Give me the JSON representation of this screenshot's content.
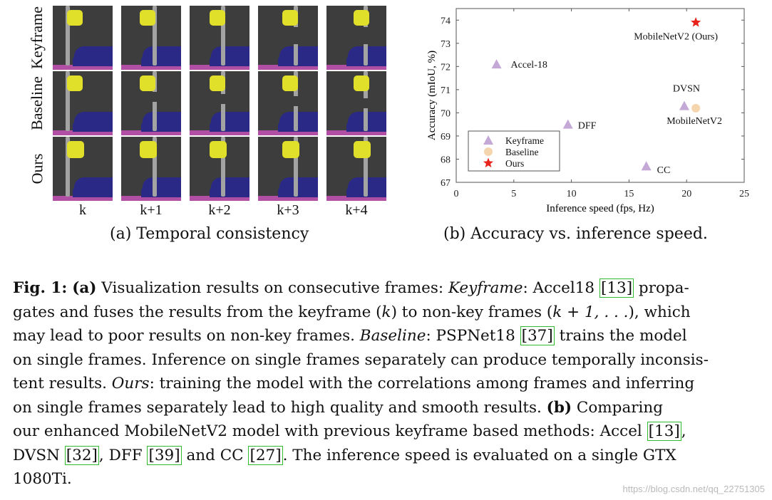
{
  "panel_a": {
    "row_labels": [
      "Keyframe",
      "Baseline",
      "Ours"
    ],
    "col_labels": [
      "k",
      "k+1",
      "k+2",
      "k+3",
      "k+4"
    ],
    "caption": "(a) Temporal consistency",
    "colors": {
      "background": "#3d3d3d",
      "sign": "#e0e02a",
      "pole": "#a3a3a3",
      "car": "#2a2a86",
      "road": "#b04fa3"
    }
  },
  "panel_b": {
    "caption": "(b) Accuracy vs. inference speed."
  },
  "chart_data": {
    "type": "scatter",
    "title": "",
    "xlabel": "Inference speed (fps, Hz)",
    "ylabel": "Accuracy (mIoU, %)",
    "xlim": [
      0,
      25
    ],
    "ylim": [
      67,
      74.5
    ],
    "xticks": [
      0,
      5,
      10,
      15,
      20,
      25
    ],
    "yticks": [
      67,
      68,
      69,
      70,
      71,
      72,
      73,
      74
    ],
    "legend": {
      "placement": "lower-left",
      "entries": [
        {
          "label": "Keyframe",
          "marker": "triangle",
          "color": "#c4a8d6"
        },
        {
          "label": "Baseline",
          "marker": "circle",
          "color": "#f5d5ae"
        },
        {
          "label": "Ours",
          "marker": "star",
          "color": "#e8231b"
        }
      ]
    },
    "series": [
      {
        "name": "Keyframe",
        "marker": "triangle",
        "color": "#c4a8d6",
        "points": [
          {
            "label": "Accel-18",
            "x": 3.5,
            "y": 72.1
          },
          {
            "label": "DFF",
            "x": 9.7,
            "y": 69.5
          },
          {
            "label": "CC",
            "x": 16.5,
            "y": 67.7
          },
          {
            "label": "DVSN",
            "x": 19.8,
            "y": 70.3
          }
        ]
      },
      {
        "name": "Baseline",
        "marker": "circle",
        "color": "#f5d5ae",
        "points": [
          {
            "label": "MobileNetV2",
            "x": 20.8,
            "y": 70.2
          }
        ]
      },
      {
        "name": "Ours",
        "marker": "star",
        "color": "#e8231b",
        "points": [
          {
            "label": "MobileNetV2 (Ours)",
            "x": 20.8,
            "y": 73.9
          }
        ]
      }
    ]
  },
  "figure_caption": {
    "lines": [
      [
        "Fig. 1:",
        " ",
        "(a)",
        " Visualization results on consecutive frames: ",
        "Keyframe",
        ": Accel18 ",
        "[13]",
        " propa-"
      ],
      [
        "gates and fuses the results from the keyframe (",
        "k",
        ") to non-key frames (",
        "k + 1, . . .",
        "), which"
      ],
      [
        "may lead to poor results on non-key frames. ",
        "Baseline",
        ": PSPNet18 ",
        "[37]",
        " trains the model"
      ],
      [
        "on single frames. Inference on single frames separately can produce temporally inconsis-"
      ],
      [
        "tent results. ",
        "Ours",
        ": training the model with the correlations among frames and inferring"
      ],
      [
        "on single frames separately lead to high quality and smooth results. ",
        "(b)",
        " Comparing"
      ],
      [
        "our enhanced MobileNetV2 model with previous keyframe based methods: Accel ",
        "[13]",
        ","
      ],
      [
        "DVSN ",
        "[32]",
        ", DFF ",
        "[39]",
        " and CC ",
        "[27]",
        ". The inference speed is evaluated on a single GTX"
      ],
      [
        "1080Ti."
      ]
    ]
  },
  "watermark": "https://blog.csdn.net/qq_22751305"
}
